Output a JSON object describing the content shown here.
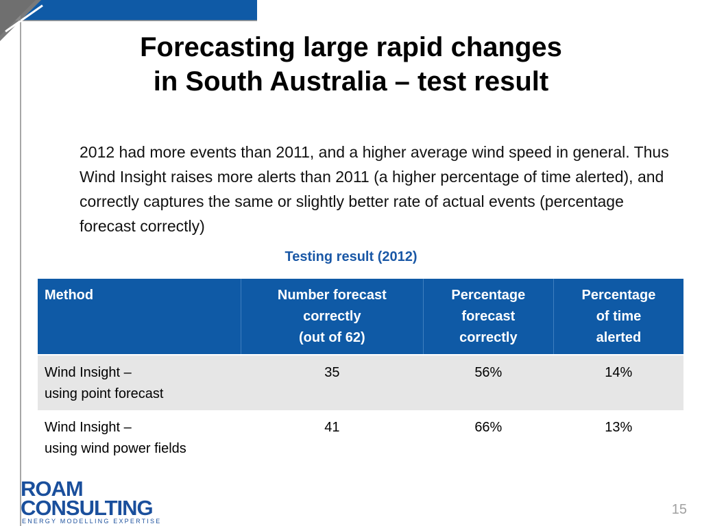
{
  "title": {
    "line1": "Forecasting large rapid changes",
    "line2": "in South Australia – test result"
  },
  "body_text": "2012 had more events than 2011, and a higher average wind speed in general. Thus Wind Insight raises more alerts than 2011 (a higher percentage of time alerted), and correctly captures the same or slightly better rate of actual events (percentage forecast correctly)",
  "table": {
    "caption": "Testing result (2012)",
    "headers": {
      "method": "Method",
      "number": [
        "Number forecast",
        "correctly",
        "(out of 62)"
      ],
      "pct_correct": [
        "Percentage",
        "forecast",
        "correctly"
      ],
      "pct_alerted": [
        "Percentage",
        "of time",
        "alerted"
      ]
    },
    "rows": [
      {
        "method": [
          "Wind Insight –",
          "using point forecast"
        ],
        "number": "35",
        "pct_correct": "56%",
        "pct_alerted": "14%"
      },
      {
        "method": [
          "Wind Insight –",
          "using wind power fields"
        ],
        "number": "41",
        "pct_correct": "66%",
        "pct_alerted": "13%"
      }
    ]
  },
  "logo": {
    "line1": "ROAM",
    "line2": "CONSULTING",
    "tagline": "ENERGY MODELLING EXPERTISE"
  },
  "page_number": "15",
  "colors": {
    "header_blue": "#0f5aa6",
    "caption_blue": "#1a58a6",
    "row_gray": "#e6e6e6",
    "frame_gray": "#7a7a7a",
    "frame_blue": "#0f5aa6",
    "logo_blue": "#1a4f9c"
  }
}
